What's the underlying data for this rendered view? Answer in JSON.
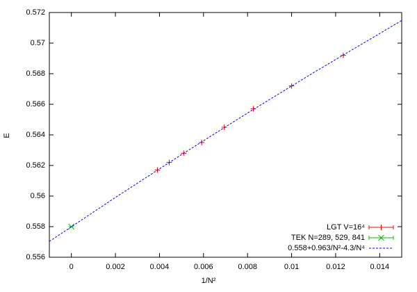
{
  "chart_data": {
    "type": "scatter",
    "xlabel": "1/N²",
    "ylabel": "E",
    "xlim": [
      -0.001,
      0.015
    ],
    "ylim": [
      0.556,
      0.572
    ],
    "xticks": [
      0,
      0.002,
      0.004,
      0.006,
      0.008,
      0.01,
      0.012,
      0.014
    ],
    "yticks": [
      0.556,
      0.558,
      0.56,
      0.562,
      0.564,
      0.566,
      0.568,
      0.57,
      0.572
    ],
    "legend": "lower right",
    "series": [
      {
        "name": "LGT V=16⁴",
        "color": "#ff0000",
        "style": "plus",
        "x": [
          0.003906,
          0.004444,
          0.005102,
          0.005917,
          0.006944,
          0.008264,
          0.01,
          0.012346
        ],
        "values": [
          0.5617,
          0.5622,
          0.5628,
          0.5635,
          0.5645,
          0.5657,
          0.5672,
          0.5692
        ]
      },
      {
        "name": "TEK N=289, 529, 841",
        "color": "#00c000",
        "style": "cross",
        "x": [
          0
        ],
        "values": [
          0.558
        ]
      },
      {
        "name": "0.558+0.963/N²-4.3/N⁴",
        "color": "#0000ff",
        "style": "dashed",
        "x": [
          -0.001,
          0.002,
          0.005,
          0.008,
          0.011,
          0.015
        ],
        "values": [
          0.557033,
          0.559909,
          0.562708,
          0.565429,
          0.568073,
          0.571478
        ]
      }
    ]
  }
}
